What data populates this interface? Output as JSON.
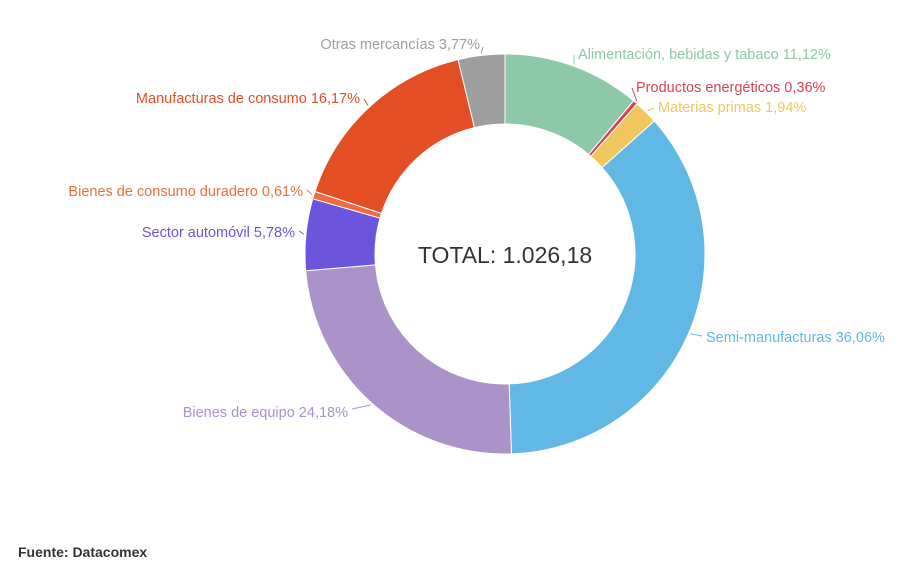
{
  "chart_data": {
    "type": "pie",
    "variant": "donut",
    "center_label": "TOTAL: 1.026,18",
    "slices": [
      {
        "label": "Alimentación, bebidas y tabaco 11,12%",
        "value": 11.12,
        "color": "#8dc8a8"
      },
      {
        "label": "Productos energéticos 0,36%",
        "value": 0.36,
        "color": "#d8434f"
      },
      {
        "label": "Materias primas 1,94%",
        "value": 1.94,
        "color": "#f0c75e"
      },
      {
        "label": "Semi-manufacturas 36,06%",
        "value": 36.06,
        "color": "#62b8e4"
      },
      {
        "label": "Bienes de equipo 24,18%",
        "value": 24.18,
        "color": "#ab93c9"
      },
      {
        "label": "Sector automóvil 5,78%",
        "value": 5.78,
        "color": "#6c54dd"
      },
      {
        "label": "Bienes de consumo duradero 0,61%",
        "value": 0.61,
        "color": "#f06b3e"
      },
      {
        "label": "Manufacturas de consumo 16,17%",
        "value": 16.17,
        "color": "#e44e25"
      },
      {
        "label": "Otras mercancías 3,77%",
        "value": 3.77,
        "color": "#9e9e9e"
      }
    ]
  },
  "source": "Fuente: Datacomex"
}
